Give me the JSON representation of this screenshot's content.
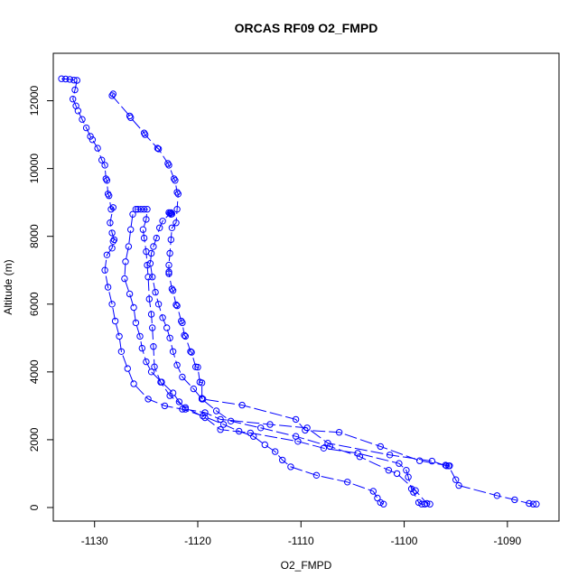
{
  "chart_data": {
    "type": "line",
    "title": "ORCAS RF09 O2_FMPD",
    "xlabel": "O2_FMPD",
    "ylabel": "Altitude (m)",
    "xlim": [
      -1134,
      -1085
    ],
    "ylim": [
      -400,
      13400
    ],
    "xticks": [
      -1130,
      -1120,
      -1110,
      -1100,
      -1090
    ],
    "yticks": [
      0,
      2000,
      4000,
      6000,
      8000,
      10000,
      12000
    ],
    "xtick_labels": [
      "-1130",
      "-1120",
      "-1110",
      "-1100",
      "-1090"
    ],
    "ytick_labels": [
      "0",
      "2000",
      "4000",
      "6000",
      "8000",
      "10000",
      "12000"
    ],
    "grid": false,
    "legend": "none",
    "marker": "open-circle",
    "color": "#0000ff",
    "series": [
      {
        "points": [
          [
            -1133.2,
            12650
          ],
          [
            -1132.8,
            12640
          ],
          [
            -1132.4,
            12630
          ],
          [
            -1132.0,
            12610
          ],
          [
            -1131.7,
            12600
          ],
          [
            -1131.9,
            12320
          ],
          [
            -1132.1,
            12050
          ],
          [
            -1131.8,
            11850
          ],
          [
            -1131.6,
            11700
          ],
          [
            -1131.2,
            11450
          ],
          [
            -1130.8,
            11200
          ],
          [
            -1130.4,
            10950
          ],
          [
            -1130.2,
            10850
          ],
          [
            -1129.7,
            10600
          ],
          [
            -1129.3,
            10250
          ],
          [
            -1129.0,
            10100
          ],
          [
            -1128.9,
            9700
          ],
          [
            -1128.8,
            9650
          ],
          [
            -1128.7,
            9250
          ],
          [
            -1128.6,
            9200
          ],
          [
            -1128.4,
            8800
          ],
          [
            -1128.2,
            8850
          ],
          [
            -1128.5,
            8400
          ],
          [
            -1128.3,
            8100
          ],
          [
            -1128.1,
            7900
          ],
          [
            -1128.2,
            7850
          ],
          [
            -1128.3,
            7650
          ],
          [
            -1128.8,
            7450
          ],
          [
            -1129.0,
            7000
          ],
          [
            -1128.7,
            6500
          ],
          [
            -1128.3,
            6000
          ],
          [
            -1128.0,
            5500
          ],
          [
            -1127.6,
            5050
          ],
          [
            -1127.4,
            4600
          ],
          [
            -1126.8,
            4100
          ],
          [
            -1126.2,
            3650
          ],
          [
            -1124.8,
            3200
          ],
          [
            -1123.2,
            3000
          ],
          [
            -1121.5,
            2900
          ],
          [
            -1119.5,
            2700
          ],
          [
            -1117.5,
            2450
          ],
          [
            -1116.0,
            2250
          ],
          [
            -1114.6,
            2100
          ],
          [
            -1113.5,
            1850
          ],
          [
            -1112.5,
            1650
          ],
          [
            -1111.8,
            1400
          ],
          [
            -1111.0,
            1200
          ],
          [
            -1108.5,
            950
          ],
          [
            -1105.5,
            750
          ],
          [
            -1103.0,
            480
          ],
          [
            -1102.6,
            280
          ],
          [
            -1102.3,
            150
          ],
          [
            -1102.0,
            100
          ]
        ]
      },
      {
        "points": [
          [
            -1128.2,
            12200
          ],
          [
            -1128.3,
            12150
          ],
          [
            -1126.6,
            11550
          ],
          [
            -1126.5,
            11500
          ],
          [
            -1125.2,
            11050
          ],
          [
            -1125.1,
            11000
          ],
          [
            -1123.9,
            10600
          ],
          [
            -1123.8,
            10580
          ],
          [
            -1122.9,
            10150
          ],
          [
            -1122.8,
            10100
          ],
          [
            -1122.3,
            9700
          ],
          [
            -1122.2,
            9650
          ],
          [
            -1122.0,
            9300
          ],
          [
            -1121.9,
            9250
          ],
          [
            -1122.0,
            8800
          ],
          [
            -1122.1,
            8400
          ],
          [
            -1122.5,
            8250
          ],
          [
            -1122.6,
            7900
          ],
          [
            -1122.7,
            7500
          ],
          [
            -1122.8,
            7150
          ],
          [
            -1122.8,
            6950
          ],
          [
            -1122.8,
            6900
          ],
          [
            -1122.5,
            6450
          ],
          [
            -1122.4,
            6400
          ],
          [
            -1122.1,
            5980
          ],
          [
            -1122.0,
            5950
          ],
          [
            -1121.6,
            5500
          ],
          [
            -1121.5,
            5450
          ],
          [
            -1121.3,
            5080
          ],
          [
            -1121.2,
            5050
          ],
          [
            -1120.7,
            4600
          ],
          [
            -1120.6,
            4580
          ],
          [
            -1120.2,
            4150
          ],
          [
            -1120.0,
            4140
          ],
          [
            -1119.8,
            3700
          ],
          [
            -1119.6,
            3680
          ],
          [
            -1119.6,
            3220
          ],
          [
            -1119.5,
            3200
          ],
          [
            -1115.7,
            3020
          ],
          [
            -1110.5,
            2600
          ],
          [
            -1109.6,
            2280
          ],
          [
            -1106.3,
            2220
          ],
          [
            -1102.3,
            1800
          ],
          [
            -1098.5,
            1380
          ],
          [
            -1096.0,
            1250
          ],
          [
            -1095.7,
            1230
          ],
          [
            -1095.0,
            820
          ],
          [
            -1094.7,
            650
          ],
          [
            -1091.0,
            350
          ],
          [
            -1089.3,
            230
          ],
          [
            -1087.9,
            120
          ],
          [
            -1087.5,
            100
          ],
          [
            -1087.2,
            100
          ]
        ]
      },
      {
        "points": [
          [
            -1126.0,
            8800
          ],
          [
            -1125.8,
            8800
          ],
          [
            -1125.5,
            8800
          ],
          [
            -1125.2,
            8800
          ],
          [
            -1124.9,
            8800
          ],
          [
            -1125.0,
            8500
          ],
          [
            -1125.3,
            8200
          ],
          [
            -1125.2,
            7950
          ],
          [
            -1125.0,
            7550
          ],
          [
            -1124.9,
            7150
          ],
          [
            -1124.8,
            6800
          ],
          [
            -1124.7,
            6150
          ],
          [
            -1124.5,
            5700
          ],
          [
            -1124.4,
            5300
          ],
          [
            -1124.3,
            4750
          ],
          [
            -1124.2,
            4150
          ],
          [
            -1123.6,
            3700
          ],
          [
            -1122.7,
            3300
          ],
          [
            -1121.2,
            2950
          ],
          [
            -1119.3,
            2650
          ],
          [
            -1117.8,
            2300
          ],
          [
            -1114.9,
            2200
          ],
          [
            -1110.3,
            1950
          ],
          [
            -1107.8,
            1750
          ],
          [
            -1104.5,
            1600
          ],
          [
            -1100.5,
            1300
          ],
          [
            -1099.8,
            1100
          ],
          [
            -1099.6,
            900
          ],
          [
            -1099.3,
            550
          ],
          [
            -1099.1,
            450
          ],
          [
            -1098.6,
            150
          ],
          [
            -1098.3,
            100
          ],
          [
            -1098.0,
            100
          ]
        ]
      },
      {
        "points": [
          [
            -1122.8,
            8700
          ],
          [
            -1122.7,
            8680
          ],
          [
            -1122.6,
            8650
          ],
          [
            -1122.5,
            8660
          ],
          [
            -1122.6,
            8700
          ],
          [
            -1123.4,
            8450
          ],
          [
            -1123.7,
            8250
          ],
          [
            -1124.0,
            7950
          ],
          [
            -1124.3,
            7700
          ],
          [
            -1124.5,
            7500
          ],
          [
            -1124.6,
            7200
          ],
          [
            -1124.4,
            6800
          ],
          [
            -1124.1,
            6350
          ],
          [
            -1123.8,
            6000
          ],
          [
            -1123.4,
            5600
          ],
          [
            -1123.0,
            5300
          ],
          [
            -1122.7,
            5000
          ],
          [
            -1122.4,
            4600
          ],
          [
            -1122.0,
            4200
          ],
          [
            -1121.5,
            3850
          ],
          [
            -1120.4,
            3500
          ],
          [
            -1119.6,
            3200
          ],
          [
            -1118.2,
            2850
          ],
          [
            -1116.8,
            2550
          ],
          [
            -1113.9,
            2350
          ],
          [
            -1110.5,
            2100
          ],
          [
            -1107.2,
            1800
          ],
          [
            -1104.3,
            1500
          ],
          [
            -1101.5,
            1100
          ],
          [
            -1100.7,
            1000
          ],
          [
            -1098.9,
            500
          ],
          [
            -1097.8,
            120
          ],
          [
            -1097.5,
            100
          ]
        ]
      },
      {
        "points": [
          [
            -1126.3,
            8650
          ],
          [
            -1126.5,
            8200
          ],
          [
            -1126.7,
            7700
          ],
          [
            -1127.0,
            7250
          ],
          [
            -1127.1,
            6750
          ],
          [
            -1126.6,
            6300
          ],
          [
            -1126.2,
            5900
          ],
          [
            -1126.0,
            5450
          ],
          [
            -1125.6,
            5050
          ],
          [
            -1125.4,
            4700
          ],
          [
            -1125.0,
            4300
          ],
          [
            -1124.5,
            4000
          ],
          [
            -1123.5,
            3700
          ],
          [
            -1122.4,
            3380
          ],
          [
            -1121.8,
            3120
          ],
          [
            -1121.2,
            2900
          ],
          [
            -1119.3,
            2800
          ],
          [
            -1117.8,
            2600
          ],
          [
            -1113.0,
            2450
          ],
          [
            -1109.4,
            2350
          ],
          [
            -1107.4,
            1900
          ],
          [
            -1101.4,
            1550
          ],
          [
            -1097.3,
            1370
          ],
          [
            -1095.9,
            1230
          ],
          [
            -1095.6,
            1230
          ]
        ]
      }
    ]
  }
}
